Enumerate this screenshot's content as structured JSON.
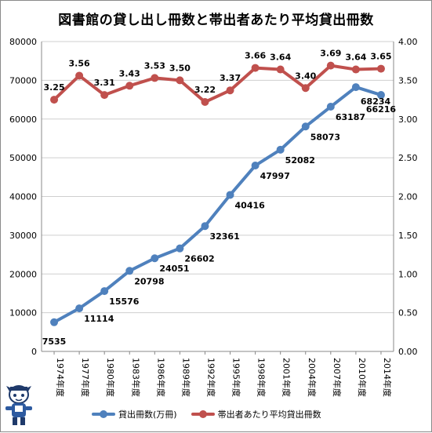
{
  "title": "図書館の貸し出し冊数と帯出者あたり平均貸出冊数",
  "colors": {
    "loans": "#4f81bd",
    "average": "#c0504d",
    "grid": "#cfcfcf",
    "axis": "#888888"
  },
  "legend": {
    "loans": "貸出冊数(万冊)",
    "average": "帯出者あたり平均貸出冊数"
  },
  "chart_data": {
    "type": "line",
    "title": "図書館の貸し出し冊数と帯出者あたり平均貸出冊数",
    "categories": [
      "1974年度",
      "1977年度",
      "1980年度",
      "1983年度",
      "1986年度",
      "1989年度",
      "1992年度",
      "1995年度",
      "1998年度",
      "2001年度",
      "2004年度",
      "2007年度",
      "2010年度",
      "2014年度"
    ],
    "series": [
      {
        "name": "貸出冊数(万冊)",
        "axis": "left",
        "values": [
          7535,
          11114,
          15576,
          20798,
          24051,
          26602,
          32361,
          40416,
          47997,
          52082,
          58073,
          63187,
          68234,
          66216
        ],
        "labels": [
          "7535",
          "11114",
          "15576",
          "20798",
          "24051",
          "26602",
          "32361",
          "40416",
          "47997",
          "52082",
          "58073",
          "63187",
          "68234",
          "66216"
        ]
      },
      {
        "name": "帯出者あたり平均貸出冊数",
        "axis": "right",
        "values": [
          3.25,
          3.56,
          3.31,
          3.43,
          3.53,
          3.5,
          3.22,
          3.37,
          3.66,
          3.64,
          3.4,
          3.69,
          3.64,
          3.65
        ],
        "labels": [
          "3.25",
          "3.56",
          "3.31",
          "3.43",
          "3.53",
          "3.50",
          "3.22",
          "3.37",
          "3.66",
          "3.64",
          "3.40",
          "3.69",
          "3.64",
          "3.65"
        ]
      }
    ],
    "ylim_left": [
      0,
      80000
    ],
    "ylim_right": [
      0,
      4
    ],
    "yticks_left": [
      "0",
      "10000",
      "20000",
      "30000",
      "40000",
      "50000",
      "60000",
      "70000",
      "80000"
    ],
    "yticks_right": [
      "0.00",
      "0.50",
      "1.00",
      "1.50",
      "2.00",
      "2.50",
      "3.00",
      "3.50",
      "4.00"
    ],
    "grid": true,
    "legend_position": "bottom"
  }
}
